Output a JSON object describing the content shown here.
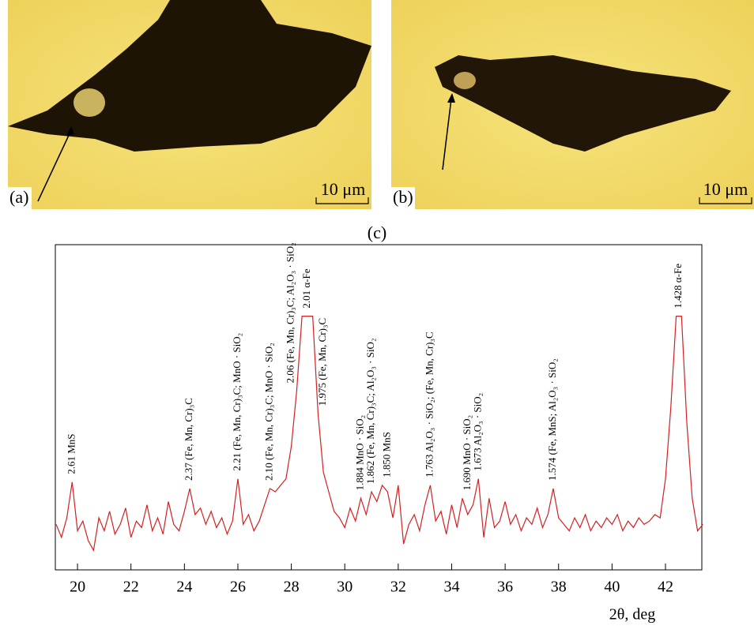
{
  "panels": [
    {
      "label": "(a)",
      "scale": "10 μm"
    },
    {
      "label": "(b)",
      "scale": "10 μm"
    }
  ],
  "chart_data": {
    "type": "line",
    "label": "(c)",
    "x_label": "2θ, deg",
    "x": [
      19.2,
      19.4,
      19.6,
      19.8,
      20.0,
      20.2,
      20.4,
      20.6,
      20.8,
      21.0,
      21.2,
      21.4,
      21.6,
      21.8,
      22.0,
      22.2,
      22.4,
      22.6,
      22.8,
      23.0,
      23.2,
      23.4,
      23.6,
      23.8,
      24.0,
      24.2,
      24.4,
      24.6,
      24.8,
      25.0,
      25.2,
      25.4,
      25.6,
      25.8,
      26.0,
      26.2,
      26.4,
      26.6,
      26.8,
      27.0,
      27.2,
      27.4,
      27.6,
      27.8,
      28.0,
      28.2,
      28.4,
      28.6,
      28.8,
      29.0,
      29.2,
      29.4,
      29.6,
      29.8,
      30.0,
      30.2,
      30.4,
      30.6,
      30.8,
      31.0,
      31.2,
      31.4,
      31.6,
      31.8,
      32.0,
      32.2,
      32.4,
      32.6,
      32.8,
      33.0,
      33.2,
      33.4,
      33.6,
      33.8,
      34.0,
      34.2,
      34.4,
      34.6,
      34.8,
      35.0,
      35.2,
      35.4,
      35.6,
      35.8,
      36.0,
      36.2,
      36.4,
      36.6,
      36.8,
      37.0,
      37.2,
      37.4,
      37.6,
      37.8,
      38.0,
      38.2,
      38.4,
      38.6,
      38.8,
      39.0,
      39.2,
      39.4,
      39.6,
      39.8,
      40.0,
      40.2,
      40.4,
      40.6,
      40.8,
      41.0,
      41.2,
      41.4,
      41.6,
      41.8,
      42.0,
      42.2,
      42.4,
      42.6,
      42.8,
      43.0,
      43.2,
      43.4
    ],
    "series": [
      {
        "color": "#d42020",
        "values": [
          14,
          10,
          16,
          27,
          12,
          15,
          9,
          6,
          16,
          12,
          18,
          11,
          14,
          19,
          10,
          15,
          13,
          20,
          12,
          16,
          11,
          21,
          14,
          12,
          18,
          25,
          17,
          19,
          14,
          18,
          13,
          16,
          11,
          15,
          28,
          14,
          17,
          12,
          15,
          20,
          25,
          24,
          26,
          28,
          38,
          55,
          78,
          78,
          78,
          48,
          30,
          24,
          18,
          16,
          13,
          19,
          15,
          22,
          17,
          24,
          21,
          26,
          24,
          16,
          26,
          8,
          14,
          17,
          12,
          20,
          26,
          15,
          18,
          11,
          20,
          13,
          22,
          17,
          20,
          28,
          10,
          22,
          13,
          15,
          21,
          14,
          17,
          12,
          16,
          14,
          19,
          13,
          17,
          25,
          16,
          14,
          12,
          16,
          13,
          17,
          12,
          15,
          13,
          16,
          14,
          17,
          12,
          15,
          13,
          16,
          14,
          15,
          17,
          16,
          28,
          50,
          78,
          78,
          45,
          22,
          12,
          14
        ]
      }
    ],
    "xlim": [
      19.17,
      43.36
    ],
    "ylim": [
      0,
      100
    ],
    "xticks": [
      20,
      22,
      24,
      26,
      28,
      30,
      32,
      34,
      36,
      38,
      40,
      42
    ],
    "annotations": [
      {
        "x": 19.8,
        "text": "2.61 MnS"
      },
      {
        "x": 24.2,
        "text": "2.37 (Fe, Mn, Cr)₃C"
      },
      {
        "x": 26.0,
        "text": "2.21 (Fe, Mn, Cr)₃C; MnO · SiO₂"
      },
      {
        "x": 27.2,
        "text": "2.10 (Fe, Mn, Cr)₃C; MnO · SiO₂"
      },
      {
        "x": 28.0,
        "text": "2.06 (Fe, Mn, Cr)₃C; Al₂O₃ · SiO₂"
      },
      {
        "x": 28.6,
        "text": "2.01 α-Fe"
      },
      {
        "x": 29.2,
        "text": "1.975 (Fe, Mn, Cr)₃C"
      },
      {
        "x": 30.6,
        "text": "1.884 MnO · SiO₂"
      },
      {
        "x": 31.0,
        "text": "1.862 (Fe, Mn, Cr)₃C; Al₂O₃ · SiO₂"
      },
      {
        "x": 31.6,
        "text": "1.850 MnS"
      },
      {
        "x": 33.2,
        "text": "1.763 Al₂O₃ · SiO₂; (Fe, Mn, Cr)₃C"
      },
      {
        "x": 34.6,
        "text": "1.690 MnO · SiO₂"
      },
      {
        "x": 35.0,
        "text": "1.673 Al₂O₃ · SiO₂"
      },
      {
        "x": 37.8,
        "text": "1.574 (Fe, MnS; Al₂O₃ · SiO₂"
      },
      {
        "x": 42.5,
        "text": "1.428 α-Fe"
      }
    ]
  }
}
